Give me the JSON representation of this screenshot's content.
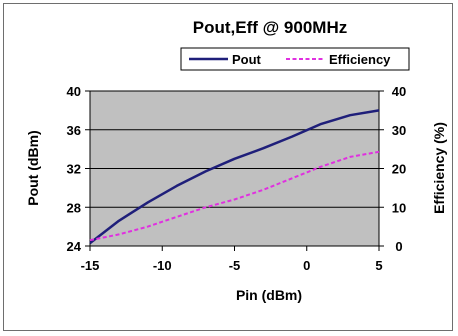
{
  "chart_data": {
    "type": "line",
    "title": "Pout,Eff @ 900MHz",
    "xlabel": "Pin (dBm)",
    "ylabel_left": "Pout (dBm)",
    "ylabel_right": "Efficiency (%)",
    "xlim": [
      -15,
      5
    ],
    "ylim_left": [
      24,
      40
    ],
    "ylim_right": [
      0,
      40
    ],
    "x_ticks": [
      "-15",
      "-10",
      "-5",
      "0",
      "5"
    ],
    "y_left_ticks": [
      "24",
      "28",
      "32",
      "36",
      "40"
    ],
    "y_right_ticks": [
      "0",
      "10",
      "20",
      "30",
      "40"
    ],
    "grid": "horizontal",
    "legend_position": "top",
    "plot_background": "#c0c0c0",
    "series": [
      {
        "name": "Pout",
        "axis": "left",
        "style": "solid",
        "color": "#1f1f7a",
        "x": [
          -15,
          -13,
          -11,
          -9,
          -7,
          -5,
          -3,
          -1,
          1,
          3,
          5
        ],
        "y": [
          24.3,
          26.6,
          28.5,
          30.2,
          31.7,
          33.0,
          34.1,
          35.3,
          36.6,
          37.5,
          38.0
        ]
      },
      {
        "name": "Efficiency",
        "axis": "right",
        "style": "dashed",
        "color": "#e030e0",
        "x": [
          -15,
          -13,
          -11,
          -9,
          -7,
          -5,
          -3,
          -1,
          1,
          3,
          5
        ],
        "y": [
          1.5,
          3.0,
          5.0,
          7.5,
          10.0,
          12.0,
          14.5,
          17.5,
          20.5,
          23.0,
          24.3
        ]
      }
    ]
  }
}
